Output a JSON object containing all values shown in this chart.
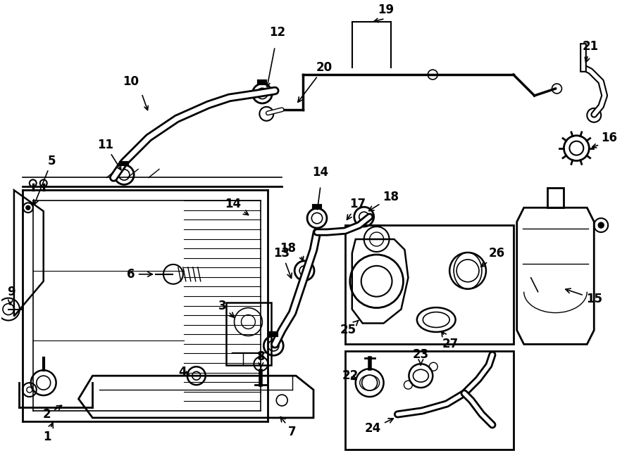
{
  "bg_color": "#ffffff",
  "line_color": "#000000",
  "lw_main": 1.8,
  "lw_thin": 1.0,
  "lw_hose": 5.0
}
